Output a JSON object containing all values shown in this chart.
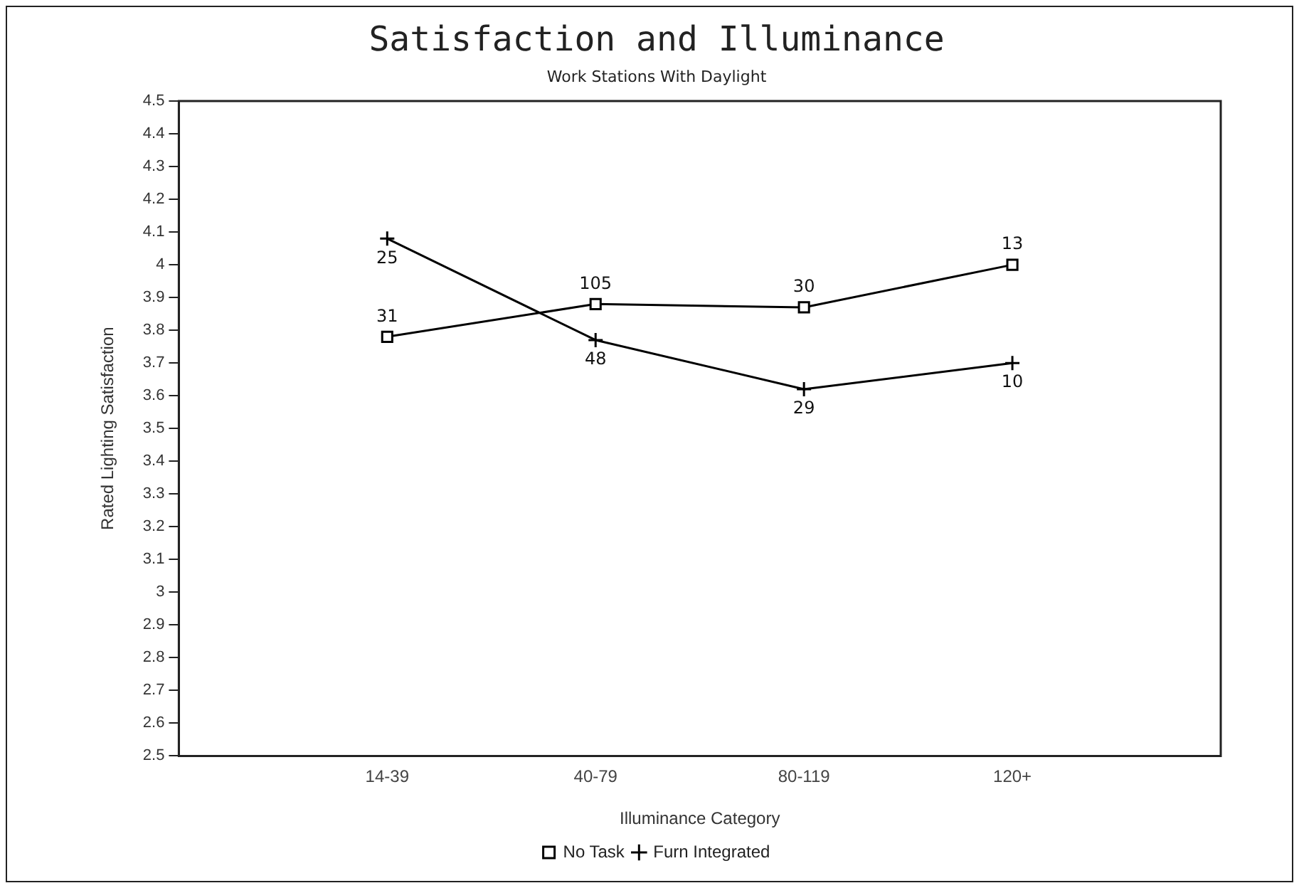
{
  "chart_data": {
    "type": "line",
    "title": "Satisfaction and Illuminance",
    "subtitle": "Work Stations With Daylight",
    "xlabel": "Illuminance Category",
    "ylabel": "Rated Lighting Satisfaction",
    "categories": [
      null,
      "14-39",
      "40-79",
      "80-119",
      "120+",
      null
    ],
    "series": [
      {
        "name": "No Task",
        "color": "#000000",
        "marker": "square",
        "values": [
          null,
          3.78,
          3.88,
          3.87,
          4.0,
          null
        ]
      },
      {
        "name": "Furn Integrated",
        "color": "#000000",
        "marker": "cross",
        "values": [
          null,
          4.08,
          3.77,
          3.62,
          3.7,
          null
        ]
      }
    ],
    "annotations": [
      {
        "text": "31",
        "x": "14-39",
        "y": 3.78
      },
      {
        "text": "105",
        "x": "40-79",
        "y": 3.88
      },
      {
        "text": "30",
        "x": "80-119",
        "y": 3.87
      },
      {
        "text": "13",
        "x": "120+",
        "y": 4.0
      },
      {
        "text": "25",
        "x": "14-39",
        "y": 4.08
      },
      {
        "text": "48",
        "x": "40-79",
        "y": 3.77
      },
      {
        "text": "29",
        "x": "80-119",
        "y": 3.62
      },
      {
        "text": "10",
        "x": "120+",
        "y": 3.7
      }
    ],
    "ylim": [
      2.5,
      4.5
    ],
    "yticks": [
      2.5,
      2.6,
      2.7,
      2.8,
      2.9,
      3,
      3.1,
      3.2,
      3.3,
      3.4,
      3.5,
      3.6,
      3.7,
      3.8,
      3.9,
      4,
      4.1,
      4.2,
      4.3,
      4.4,
      4.5
    ],
    "grid": false,
    "legend": "bottom",
    "line_style": "solid"
  }
}
